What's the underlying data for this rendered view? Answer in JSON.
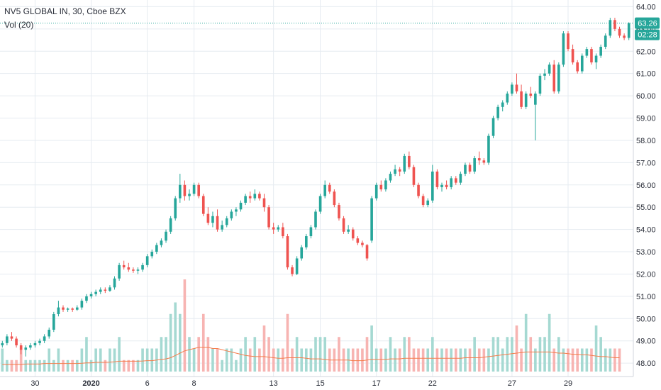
{
  "chart_data": {
    "type": "candlestick",
    "title": "NV5 GLOBAL IN, 30, Cboe BZX",
    "volume_label": "Vol (20)",
    "y_ticks": [
      "48.00",
      "49.00",
      "50.00",
      "51.00",
      "52.00",
      "53.00",
      "54.00",
      "55.00",
      "56.00",
      "57.00",
      "58.00",
      "59.00",
      "60.00",
      "61.00",
      "62.00",
      "63.00",
      "64.00"
    ],
    "ylim": [
      47.4,
      64.3
    ],
    "x_ticks": [
      "30",
      "2020",
      "6",
      "8",
      "13",
      "15",
      "17",
      "22",
      "27",
      "29"
    ],
    "x_tick_indices": [
      7,
      19,
      31,
      41,
      58,
      68,
      80,
      92,
      109,
      121
    ],
    "last_price": "63.26",
    "countdown": "02:28",
    "colors": {
      "up": "#26a69a",
      "down": "#ef5350",
      "up_volume": "#a5d9d2",
      "down_volume": "#f7b4b2",
      "volume_ma": "#f57c4a",
      "price_line": "#26a69a",
      "grid": "#e6ebf1"
    },
    "candles": [
      [
        48.8,
        49.0,
        48.7,
        48.9
      ],
      [
        48.9,
        49.3,
        48.8,
        49.2
      ],
      [
        49.2,
        49.4,
        49.0,
        49.1
      ],
      [
        49.1,
        49.2,
        48.7,
        48.8
      ],
      [
        48.8,
        48.9,
        48.4,
        48.6
      ],
      [
        48.6,
        48.8,
        48.3,
        48.7
      ],
      [
        48.7,
        48.9,
        48.6,
        48.8
      ],
      [
        48.8,
        49.0,
        48.7,
        48.9
      ],
      [
        48.9,
        49.1,
        48.8,
        49.0
      ],
      [
        49.0,
        49.3,
        48.9,
        49.2
      ],
      [
        49.2,
        49.6,
        49.1,
        49.5
      ],
      [
        49.5,
        50.3,
        49.4,
        50.2
      ],
      [
        50.2,
        50.8,
        50.1,
        50.5
      ],
      [
        50.5,
        50.6,
        50.3,
        50.4
      ],
      [
        50.4,
        50.5,
        50.3,
        50.45
      ],
      [
        50.45,
        50.5,
        50.3,
        50.4
      ],
      [
        50.4,
        50.6,
        50.35,
        50.5
      ],
      [
        50.5,
        50.9,
        50.4,
        50.8
      ],
      [
        50.8,
        51.1,
        50.7,
        51.0
      ],
      [
        51.0,
        51.2,
        50.9,
        51.1
      ],
      [
        51.1,
        51.3,
        51.0,
        51.2
      ],
      [
        51.2,
        51.4,
        51.1,
        51.3
      ],
      [
        51.3,
        51.4,
        51.15,
        51.25
      ],
      [
        51.25,
        51.5,
        51.2,
        51.4
      ],
      [
        51.4,
        51.9,
        51.3,
        51.8
      ],
      [
        51.8,
        52.5,
        51.7,
        52.4
      ],
      [
        52.4,
        52.6,
        52.2,
        52.3
      ],
      [
        52.3,
        52.5,
        52.1,
        52.2
      ],
      [
        52.2,
        52.3,
        52.05,
        52.15
      ],
      [
        52.15,
        52.3,
        52.0,
        52.2
      ],
      [
        52.2,
        52.5,
        52.1,
        52.4
      ],
      [
        52.4,
        52.9,
        52.3,
        52.8
      ],
      [
        52.8,
        53.1,
        52.7,
        53.0
      ],
      [
        53.0,
        53.4,
        52.9,
        53.3
      ],
      [
        53.3,
        53.6,
        53.2,
        53.5
      ],
      [
        53.5,
        54.0,
        53.4,
        53.9
      ],
      [
        53.9,
        54.6,
        53.8,
        54.5
      ],
      [
        54.5,
        55.5,
        54.4,
        55.4
      ],
      [
        55.4,
        56.5,
        55.2,
        56.0
      ],
      [
        56.0,
        56.2,
        55.3,
        55.5
      ],
      [
        55.5,
        55.8,
        55.3,
        55.6
      ],
      [
        55.6,
        56.1,
        55.5,
        56.0
      ],
      [
        56.0,
        56.1,
        55.4,
        55.5
      ],
      [
        55.5,
        55.6,
        54.6,
        54.7
      ],
      [
        54.7,
        55.0,
        54.2,
        54.3
      ],
      [
        54.3,
        54.8,
        54.1,
        54.6
      ],
      [
        54.6,
        54.9,
        53.9,
        54.0
      ],
      [
        54.0,
        54.4,
        53.9,
        54.2
      ],
      [
        54.2,
        54.6,
        54.1,
        54.5
      ],
      [
        54.5,
        54.9,
        54.4,
        54.8
      ],
      [
        54.8,
        55.0,
        54.6,
        54.9
      ],
      [
        54.9,
        55.3,
        54.8,
        55.2
      ],
      [
        55.2,
        55.6,
        55.1,
        55.5
      ],
      [
        55.5,
        55.7,
        55.2,
        55.4
      ],
      [
        55.4,
        55.8,
        55.3,
        55.6
      ],
      [
        55.6,
        55.7,
        55.3,
        55.4
      ],
      [
        55.4,
        55.6,
        54.8,
        55.0
      ],
      [
        55.0,
        55.1,
        54.0,
        54.1
      ],
      [
        54.1,
        54.3,
        53.8,
        54.0
      ],
      [
        54.0,
        54.2,
        53.9,
        54.1
      ],
      [
        54.1,
        54.3,
        53.6,
        53.7
      ],
      [
        53.7,
        53.8,
        52.2,
        52.3
      ],
      [
        52.3,
        52.4,
        51.9,
        52.0
      ],
      [
        52.0,
        52.8,
        51.95,
        52.7
      ],
      [
        52.7,
        53.3,
        52.6,
        53.2
      ],
      [
        53.2,
        53.8,
        53.1,
        53.7
      ],
      [
        53.7,
        54.2,
        53.6,
        54.1
      ],
      [
        54.1,
        54.9,
        54.0,
        54.8
      ],
      [
        54.8,
        55.6,
        54.7,
        55.5
      ],
      [
        55.5,
        56.2,
        55.4,
        56.0
      ],
      [
        56.0,
        56.1,
        55.6,
        55.7
      ],
      [
        55.7,
        55.8,
        55.0,
        55.1
      ],
      [
        55.1,
        55.2,
        54.4,
        54.5
      ],
      [
        54.5,
        54.6,
        53.8,
        53.9
      ],
      [
        53.9,
        54.2,
        53.8,
        54.0
      ],
      [
        54.0,
        54.1,
        53.5,
        53.6
      ],
      [
        53.6,
        53.7,
        53.3,
        53.4
      ],
      [
        53.4,
        53.5,
        53.2,
        53.3
      ],
      [
        53.3,
        53.35,
        52.6,
        52.7
      ],
      [
        53.5,
        55.5,
        53.4,
        55.4
      ],
      [
        55.4,
        56.1,
        55.3,
        56.0
      ],
      [
        56.0,
        56.2,
        55.7,
        55.8
      ],
      [
        55.8,
        56.3,
        55.7,
        56.2
      ],
      [
        56.2,
        56.6,
        56.1,
        56.5
      ],
      [
        56.5,
        56.9,
        56.4,
        56.7
      ],
      [
        56.7,
        56.8,
        56.4,
        56.6
      ],
      [
        56.6,
        57.4,
        56.5,
        57.3
      ],
      [
        57.3,
        57.5,
        56.7,
        56.8
      ],
      [
        56.8,
        56.9,
        55.9,
        56.0
      ],
      [
        56.0,
        56.1,
        55.4,
        55.5
      ],
      [
        55.5,
        55.6,
        55.0,
        55.1
      ],
      [
        55.1,
        55.4,
        55.0,
        55.3
      ],
      [
        55.3,
        56.9,
        55.2,
        56.6
      ],
      [
        56.6,
        56.7,
        55.8,
        55.9
      ],
      [
        55.9,
        56.1,
        55.7,
        56.0
      ],
      [
        56.0,
        56.2,
        55.8,
        55.9
      ],
      [
        55.9,
        56.4,
        55.8,
        56.3
      ],
      [
        56.3,
        56.4,
        56.0,
        56.1
      ],
      [
        56.1,
        56.6,
        56.0,
        56.5
      ],
      [
        56.5,
        57.0,
        56.4,
        56.9
      ],
      [
        56.9,
        57.0,
        56.5,
        56.6
      ],
      [
        56.6,
        57.3,
        56.5,
        57.2
      ],
      [
        57.2,
        57.5,
        56.9,
        57.1
      ],
      [
        57.1,
        57.2,
        56.9,
        57.0
      ],
      [
        57.0,
        58.3,
        56.9,
        58.2
      ],
      [
        58.2,
        59.1,
        58.1,
        59.0
      ],
      [
        59.0,
        59.6,
        58.9,
        59.5
      ],
      [
        59.5,
        59.8,
        59.3,
        59.7
      ],
      [
        59.7,
        60.2,
        59.6,
        60.1
      ],
      [
        60.1,
        60.6,
        60.0,
        60.5
      ],
      [
        60.5,
        61.0,
        60.1,
        60.2
      ],
      [
        60.2,
        60.5,
        59.4,
        59.5
      ],
      [
        59.5,
        60.2,
        59.4,
        60.1
      ],
      [
        60.1,
        60.4,
        59.9,
        60.0
      ],
      [
        59.6,
        60.2,
        58.0,
        60.1
      ],
      [
        60.1,
        61.0,
        60.0,
        60.9
      ],
      [
        60.9,
        61.2,
        60.7,
        61.0
      ],
      [
        61.0,
        61.5,
        60.9,
        61.4
      ],
      [
        61.4,
        61.6,
        60.1,
        60.2
      ],
      [
        60.2,
        61.5,
        60.1,
        61.4
      ],
      [
        61.4,
        62.9,
        61.3,
        62.8
      ],
      [
        62.8,
        62.9,
        62.0,
        62.1
      ],
      [
        62.1,
        62.3,
        61.4,
        61.5
      ],
      [
        61.5,
        61.6,
        61.0,
        61.1
      ],
      [
        61.1,
        61.9,
        61.0,
        61.8
      ],
      [
        61.8,
        62.2,
        61.7,
        62.1
      ],
      [
        62.1,
        62.2,
        61.4,
        61.5
      ],
      [
        61.5,
        61.9,
        61.2,
        61.8
      ],
      [
        61.8,
        62.3,
        61.7,
        62.2
      ],
      [
        62.2,
        62.8,
        62.1,
        62.7
      ],
      [
        62.7,
        63.5,
        62.6,
        63.4
      ],
      [
        63.4,
        63.5,
        62.9,
        63.0
      ],
      [
        63.0,
        63.1,
        62.6,
        62.7
      ],
      [
        62.7,
        62.8,
        62.5,
        62.6
      ],
      [
        62.6,
        63.3,
        62.5,
        63.26
      ]
    ],
    "volume": [
      2,
      1,
      1,
      1,
      2,
      1,
      1,
      1,
      1,
      1,
      2,
      1,
      2,
      1,
      1,
      1,
      1,
      2,
      3,
      1,
      2,
      2,
      1,
      2,
      2,
      3,
      1,
      1,
      1,
      1,
      2,
      2,
      2,
      2,
      3,
      3,
      5,
      6,
      5,
      8,
      3,
      2,
      3,
      5,
      3,
      2,
      2,
      1,
      2,
      2,
      1,
      2,
      3,
      2,
      3,
      2,
      4,
      3,
      2,
      2,
      2,
      5,
      2,
      3,
      2,
      2,
      2,
      3,
      3,
      3,
      2,
      2,
      3,
      2,
      2,
      2,
      2,
      2,
      3,
      4,
      2,
      2,
      2,
      3,
      2,
      2,
      3,
      3,
      2,
      2,
      2,
      2,
      3,
      2,
      2,
      2,
      2,
      2,
      2,
      2,
      2,
      3,
      2,
      2,
      2,
      3,
      3,
      2,
      3,
      3,
      4,
      2,
      5,
      3,
      2,
      3,
      3,
      5,
      2,
      3,
      2,
      2,
      2,
      2,
      2,
      2,
      2,
      4,
      3,
      2,
      2,
      2,
      2
    ],
    "volume_ma": [
      0.6,
      0.6,
      0.6,
      0.6,
      0.6,
      0.65,
      0.65,
      0.65,
      0.65,
      0.7,
      0.7,
      0.7,
      0.7,
      0.7,
      0.7,
      0.7,
      0.7,
      0.72,
      0.75,
      0.75,
      0.8,
      0.8,
      0.8,
      0.82,
      0.85,
      0.9,
      0.9,
      0.9,
      0.9,
      0.9,
      0.92,
      0.95,
      0.95,
      1.0,
      1.05,
      1.1,
      1.2,
      1.4,
      1.6,
      1.8,
      1.9,
      2.0,
      2.1,
      2.1,
      2.1,
      2.0,
      2.0,
      1.9,
      1.8,
      1.7,
      1.6,
      1.5,
      1.4,
      1.35,
      1.3,
      1.3,
      1.3,
      1.25,
      1.2,
      1.15,
      1.15,
      1.2,
      1.2,
      1.2,
      1.2,
      1.15,
      1.1,
      1.1,
      1.1,
      1.05,
      1.0,
      1.0,
      1.0,
      1.0,
      1.0,
      0.95,
      0.95,
      0.95,
      1.0,
      1.05,
      1.05,
      1.05,
      1.05,
      1.1,
      1.1,
      1.1,
      1.15,
      1.15,
      1.15,
      1.15,
      1.15,
      1.15,
      1.15,
      1.15,
      1.15,
      1.15,
      1.15,
      1.15,
      1.15,
      1.2,
      1.2,
      1.2,
      1.2,
      1.25,
      1.3,
      1.35,
      1.4,
      1.45,
      1.5,
      1.55,
      1.6,
      1.65,
      1.7,
      1.7,
      1.7,
      1.7,
      1.7,
      1.7,
      1.65,
      1.6,
      1.6,
      1.55,
      1.5,
      1.5,
      1.45,
      1.45,
      1.4,
      1.35,
      1.3,
      1.3,
      1.25,
      1.2,
      1.2
    ]
  }
}
